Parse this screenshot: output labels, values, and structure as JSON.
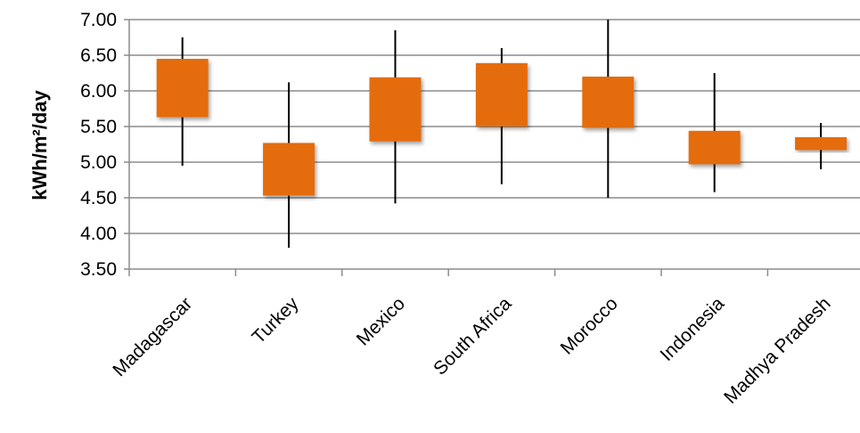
{
  "chart_data": {
    "type": "box",
    "ylabel": "kWh/m²/day",
    "ylim": [
      3.5,
      7.0
    ],
    "yticks": [
      "3.50",
      "4.00",
      "4.50",
      "5.00",
      "5.50",
      "6.00",
      "6.50",
      "7.00"
    ],
    "grid": true,
    "legend": "none",
    "categories": [
      "Madagascar",
      "Turkey",
      "Mexico",
      "South Africa",
      "Morocco",
      "Indonesia",
      "Madhya Pradesh"
    ],
    "series": [
      {
        "min": [
          4.95,
          3.8,
          4.42,
          4.69,
          4.5,
          4.58,
          4.9
        ],
        "low": [
          5.63,
          4.53,
          5.29,
          5.5,
          5.48,
          4.97,
          5.17
        ],
        "high": [
          6.45,
          5.27,
          6.19,
          6.39,
          6.2,
          5.44,
          5.35
        ],
        "max": [
          6.75,
          6.12,
          6.85,
          6.6,
          7.0,
          6.25,
          5.55
        ]
      }
    ],
    "colors": {
      "box": "#E46C0A",
      "whisker": "#000000",
      "grid": "#8C8C8C"
    }
  }
}
